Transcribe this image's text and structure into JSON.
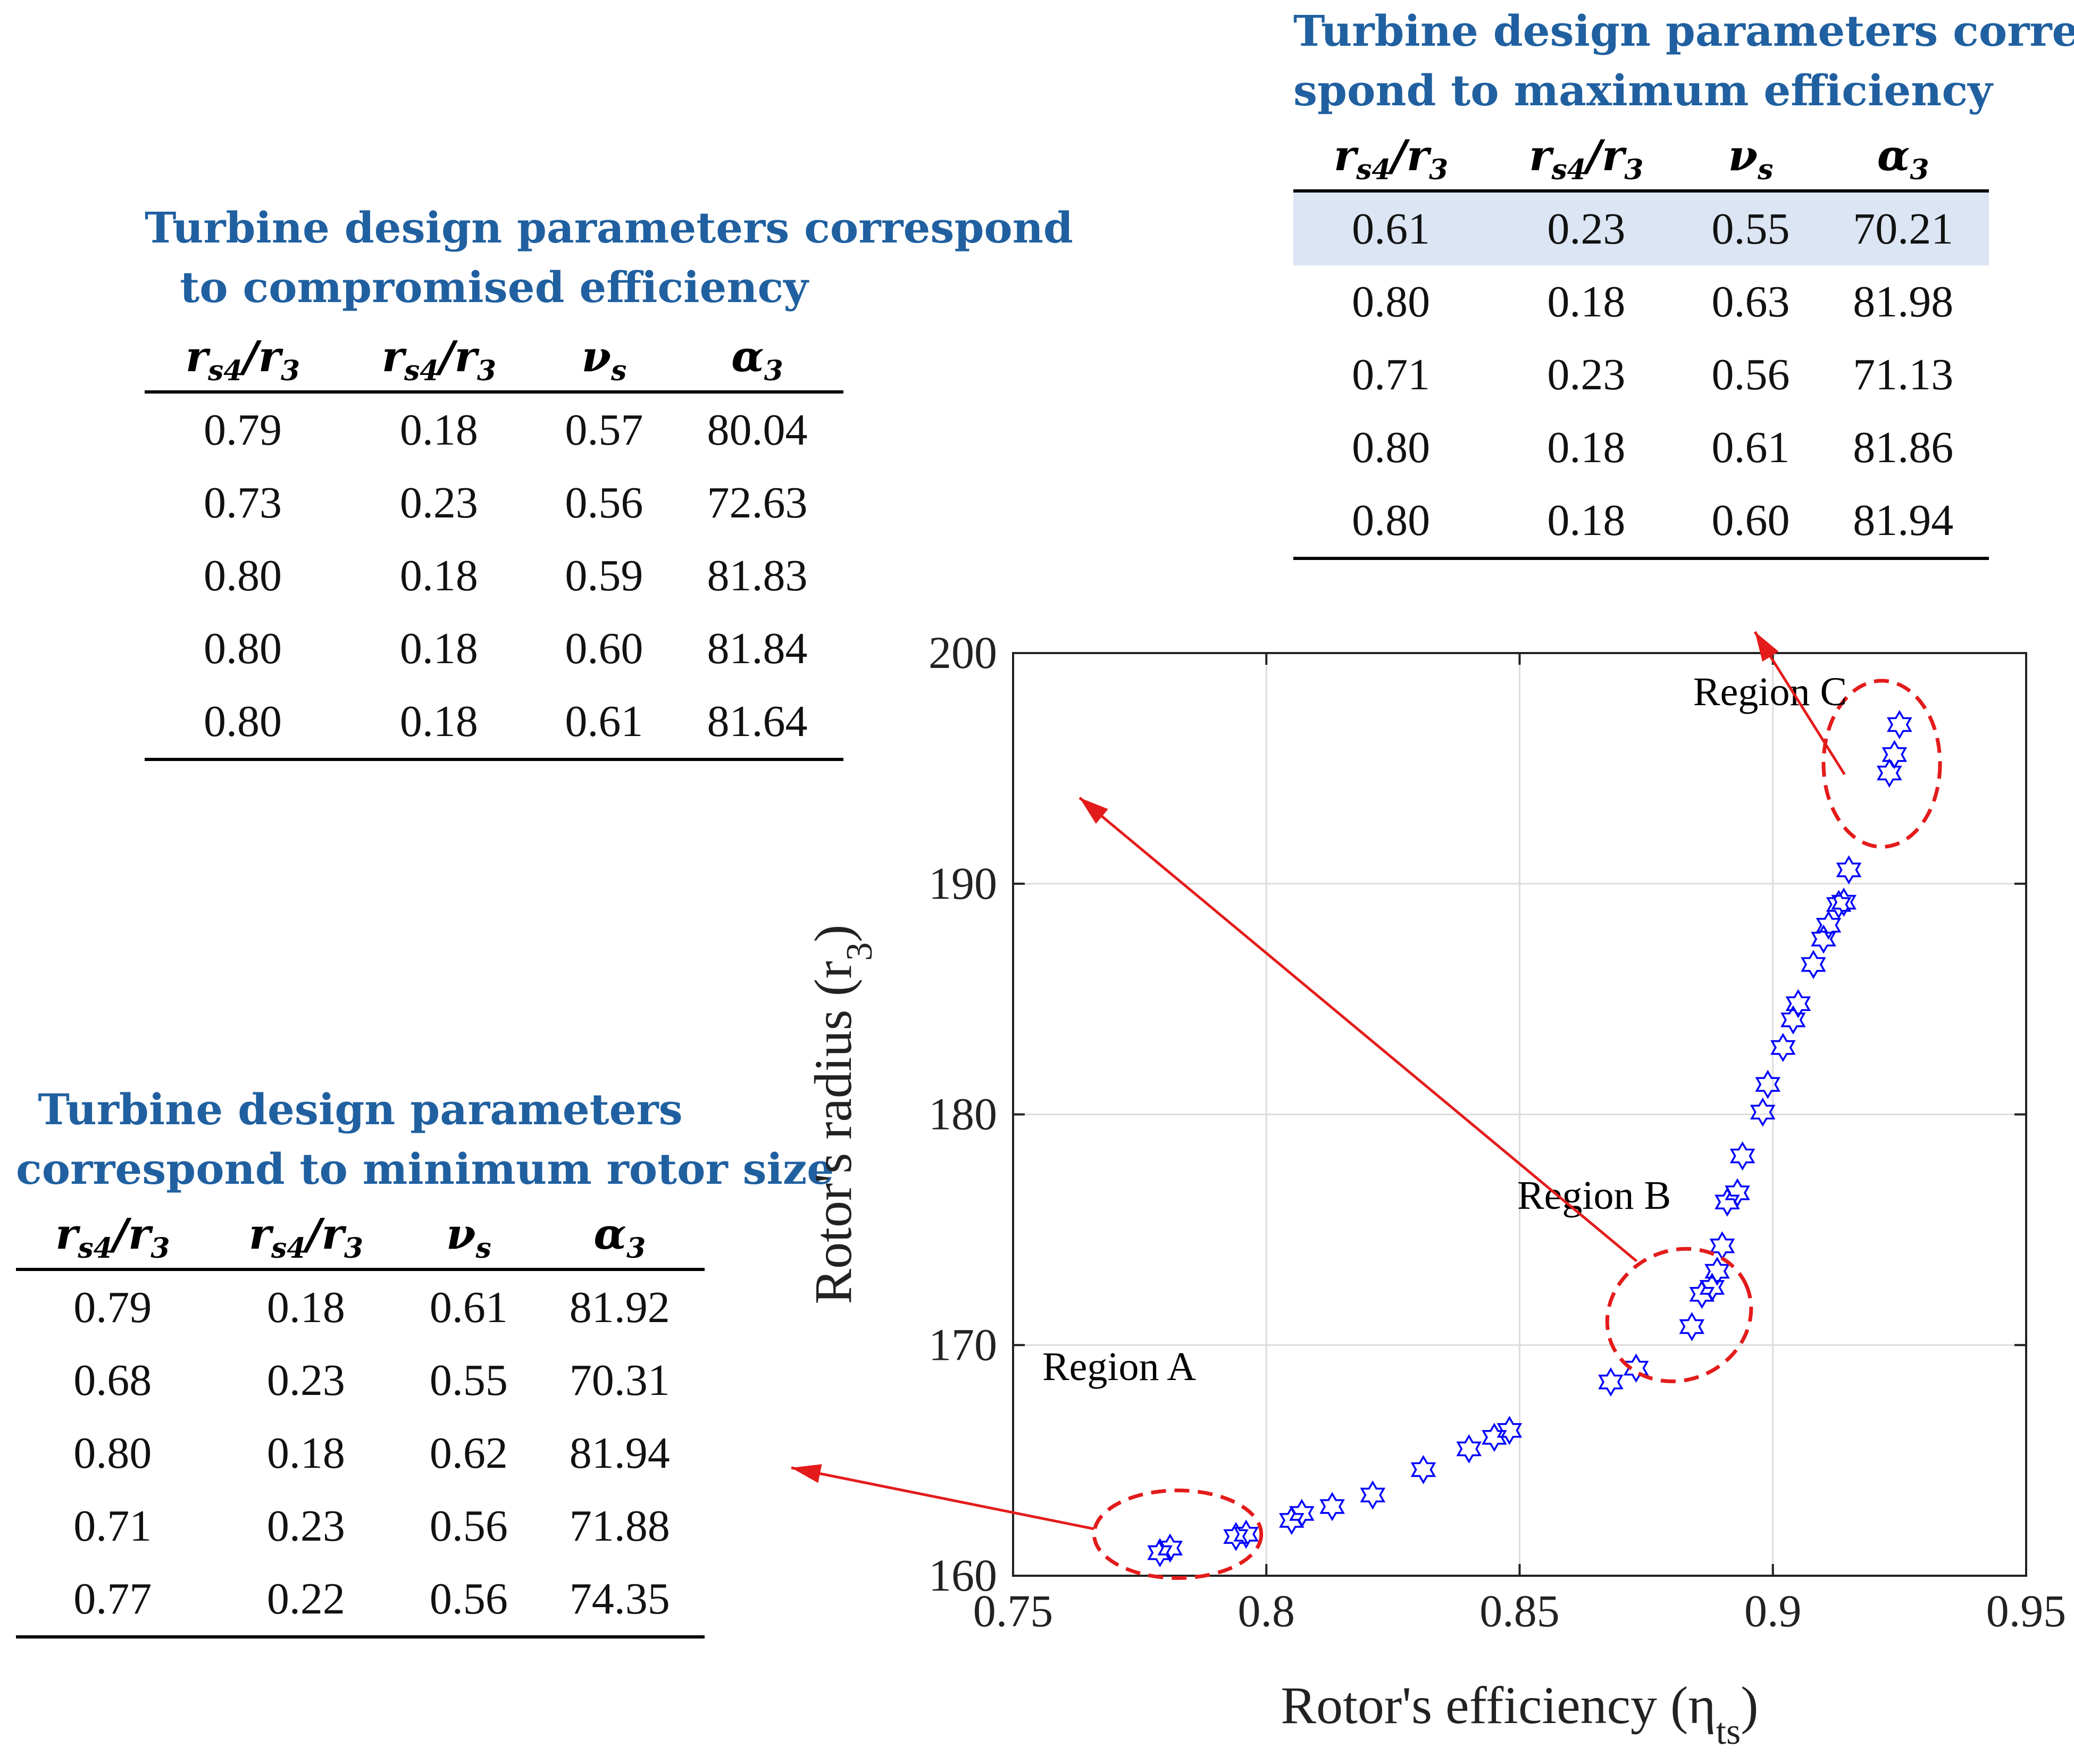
{
  "tables": {
    "compromised": {
      "title_line1": "Turbine design parameters correspond",
      "title_line2": "to compromised efficiency",
      "headers": [
        "r",
        "r",
        "ν",
        "α"
      ],
      "header_subs": [
        "s4",
        "s4",
        "s",
        "3"
      ],
      "header_tail": [
        "/r",
        "/r",
        "",
        ""
      ],
      "header_tail_subs": [
        "3",
        "3",
        "",
        ""
      ],
      "rows": [
        [
          "0.79",
          "0.18",
          "0.57",
          "80.04"
        ],
        [
          "0.73",
          "0.23",
          "0.56",
          "72.63"
        ],
        [
          "0.80",
          "0.18",
          "0.59",
          "81.83"
        ],
        [
          "0.80",
          "0.18",
          "0.60",
          "81.84"
        ],
        [
          "0.80",
          "0.18",
          "0.61",
          "81.64"
        ]
      ]
    },
    "maximum": {
      "title_line1": "Turbine design parameters corre-",
      "title_line2": "spond to maximum efficiency",
      "headers": [
        "r",
        "r",
        "ν",
        "α"
      ],
      "header_subs": [
        "s4",
        "s4",
        "s",
        "3"
      ],
      "header_tail": [
        "/r",
        "/r",
        "",
        ""
      ],
      "header_tail_subs": [
        "3",
        "3",
        "",
        ""
      ],
      "rows": [
        [
          "0.61",
          "0.23",
          "0.55",
          "70.21"
        ],
        [
          "0.80",
          "0.18",
          "0.63",
          "81.98"
        ],
        [
          "0.71",
          "0.23",
          "0.56",
          "71.13"
        ],
        [
          "0.80",
          "0.18",
          "0.61",
          "81.86"
        ],
        [
          "0.80",
          "0.18",
          "0.60",
          "81.94"
        ]
      ],
      "highlighted_row": 0
    },
    "minimum": {
      "title_line1": "Turbine design parameters",
      "title_line2": "correspond to minimum rotor size",
      "headers": [
        "r",
        "r",
        "ν",
        "α"
      ],
      "header_subs": [
        "s4",
        "s4",
        "s",
        "3"
      ],
      "header_tail": [
        "/r",
        "/r",
        "",
        ""
      ],
      "header_tail_subs": [
        "3",
        "3",
        "",
        ""
      ],
      "rows": [
        [
          "0.79",
          "0.18",
          "0.61",
          "81.92"
        ],
        [
          "0.68",
          "0.23",
          "0.55",
          "70.31"
        ],
        [
          "0.80",
          "0.18",
          "0.62",
          "81.94"
        ],
        [
          "0.71",
          "0.23",
          "0.56",
          "71.88"
        ],
        [
          "0.77",
          "0.22",
          "0.56",
          "74.35"
        ]
      ]
    }
  },
  "chart_data": {
    "type": "scatter",
    "xlabel": "Rotor's efficiency (η",
    "xlabel_sub": "ts",
    "xlabel_tail": ")",
    "ylabel": "Rotor's radius (r",
    "ylabel_sub": "3",
    "ylabel_tail": ")",
    "xlim": [
      0.75,
      0.95
    ],
    "ylim": [
      160,
      200
    ],
    "xticks": [
      0.75,
      0.8,
      0.85,
      0.9,
      0.95
    ],
    "xtick_labels": [
      "0.75",
      "0.8",
      "0.85",
      "0.9",
      "0.95"
    ],
    "yticks": [
      160,
      170,
      180,
      190,
      200
    ],
    "ytick_labels": [
      "160",
      "170",
      "180",
      "190",
      "200"
    ],
    "grid": true,
    "marker": "hexagram",
    "marker_color": "#0000ff",
    "points": [
      [
        0.779,
        161.0
      ],
      [
        0.781,
        161.2
      ],
      [
        0.794,
        161.7
      ],
      [
        0.796,
        161.8
      ],
      [
        0.805,
        162.4
      ],
      [
        0.807,
        162.7
      ],
      [
        0.813,
        163.0
      ],
      [
        0.821,
        163.5
      ],
      [
        0.831,
        164.6
      ],
      [
        0.84,
        165.5
      ],
      [
        0.845,
        166.0
      ],
      [
        0.848,
        166.3
      ],
      [
        0.868,
        168.4
      ],
      [
        0.873,
        169.0
      ],
      [
        0.884,
        170.8
      ],
      [
        0.886,
        172.2
      ],
      [
        0.888,
        172.5
      ],
      [
        0.889,
        173.2
      ],
      [
        0.89,
        174.3
      ],
      [
        0.891,
        176.2
      ],
      [
        0.893,
        176.6
      ],
      [
        0.894,
        178.2
      ],
      [
        0.898,
        180.1
      ],
      [
        0.899,
        181.3
      ],
      [
        0.902,
        182.9
      ],
      [
        0.904,
        184.1
      ],
      [
        0.905,
        184.8
      ],
      [
        0.908,
        186.5
      ],
      [
        0.91,
        187.6
      ],
      [
        0.911,
        188.2
      ],
      [
        0.913,
        189.1
      ],
      [
        0.914,
        189.2
      ],
      [
        0.915,
        190.6
      ],
      [
        0.923,
        194.8
      ],
      [
        0.924,
        195.6
      ],
      [
        0.925,
        196.9
      ]
    ],
    "regions": [
      {
        "label": "Region A",
        "cx": 0.7825,
        "cy": 161.8,
        "rx": 0.0165,
        "ry": 1.9,
        "angle": 0
      },
      {
        "label": "Region B",
        "cx": 0.8815,
        "cy": 171.3,
        "rx": 0.0145,
        "ry": 2.8,
        "angle": -25
      },
      {
        "label": "Region C",
        "cx": 0.9215,
        "cy": 195.2,
        "rx": 0.0115,
        "ry": 3.6,
        "angle": 0
      }
    ]
  }
}
